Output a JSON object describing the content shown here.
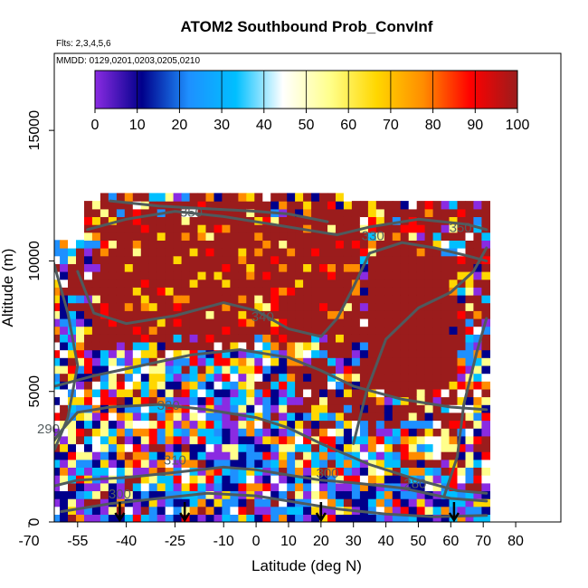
{
  "chart_data": {
    "type": "heatmap",
    "title": "ATOM2 Southbound Prob_ConvInf",
    "flights_note": "Flts: 2,3,4,5,6",
    "dates_note": "MMDD: 0129,0201,0203,0205,0210",
    "xlabel": "Latitude (deg N)",
    "ylabel": "Altitude (m)",
    "xlim": [
      -70,
      85
    ],
    "ylim": [
      0,
      17500
    ],
    "x_ticks": [
      -70,
      -55,
      -40,
      -25,
      -10,
      0,
      10,
      20,
      30,
      40,
      50,
      60,
      70,
      80
    ],
    "x_tick_labels": [
      "-70",
      "-55",
      "-40",
      "-25",
      "-10",
      "0",
      "10",
      "20",
      "30",
      "40",
      "50",
      "60",
      "70",
      "80"
    ],
    "y_ticks": [
      0,
      5000,
      10000,
      15000
    ],
    "y_tick_labels": [
      "0",
      "5000",
      "10000",
      "15000"
    ],
    "colorbar": {
      "min": 0,
      "max": 100,
      "ticks": [
        0,
        10,
        20,
        30,
        40,
        50,
        60,
        70,
        80,
        90,
        100
      ],
      "tick_labels": [
        "0",
        "10",
        "20",
        "30",
        "40",
        "50",
        "60",
        "70",
        "80",
        "90",
        "100"
      ],
      "colors": [
        "#8a2be2",
        "#00008b",
        "#1e90ff",
        "#00bfff",
        "#ffffff",
        "#ffff8c",
        "#ffd700",
        "#ff8c00",
        "#ff0000",
        "#9b1c1c"
      ]
    },
    "contours": [
      {
        "label": "350",
        "label_x": -20,
        "label_y": 11700
      },
      {
        "label": "330",
        "label_x": 36,
        "label_y": 10800
      },
      {
        "label": "350",
        "label_x": 63,
        "label_y": 11100
      },
      {
        "label": "340",
        "label_x": 2,
        "label_y": 7700
      },
      {
        "label": "320",
        "label_x": -27,
        "label_y": 4300
      },
      {
        "label": "290",
        "label_x": -64,
        "label_y": 3400
      },
      {
        "label": "310",
        "label_x": -25,
        "label_y": 2200
      },
      {
        "label": "300",
        "label_x": 22,
        "label_y": 1700
      },
      {
        "label": "280",
        "label_x": 49,
        "label_y": 1300
      },
      {
        "label": "300",
        "label_x": -42,
        "label_y": 900
      }
    ],
    "vertical_profile_markers": [
      -42,
      -22,
      20,
      61
    ]
  }
}
